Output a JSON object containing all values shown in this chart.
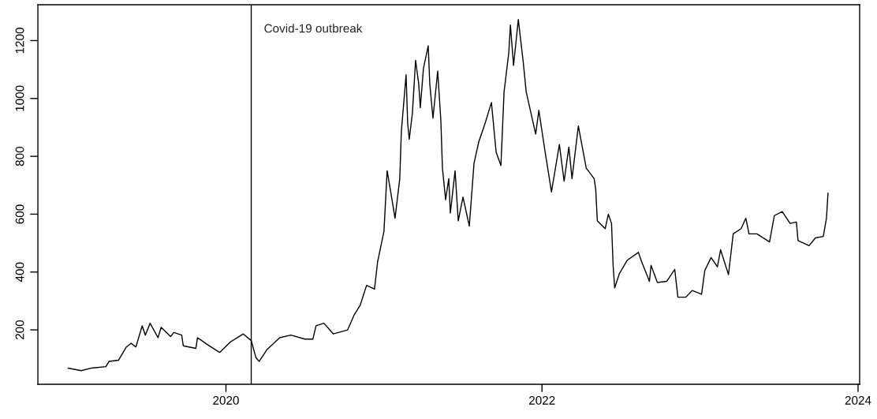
{
  "chart_data": {
    "type": "line",
    "x": [
      2019.001,
      2019.084,
      2019.15,
      2019.24,
      2019.26,
      2019.32,
      2019.37,
      2019.4,
      2019.43,
      2019.47,
      2019.49,
      2019.52,
      2019.57,
      2019.59,
      2019.65,
      2019.67,
      2019.72,
      2019.73,
      2019.81,
      2019.82,
      2019.88,
      2019.96,
      2020.03,
      2020.11,
      2020.16,
      2020.19,
      2020.21,
      2020.26,
      2020.34,
      2020.41,
      2020.5,
      2020.55,
      2020.57,
      2020.62,
      2020.68,
      2020.77,
      2020.81,
      2020.85,
      2020.89,
      2020.94,
      2020.96,
      2021.0,
      2021.02,
      2021.04,
      2021.07,
      2021.1,
      2021.11,
      2021.14,
      2021.15,
      2021.16,
      2021.18,
      2021.2,
      2021.22,
      2021.23,
      2021.25,
      2021.28,
      2021.29,
      2021.31,
      2021.34,
      2021.36,
      2021.37,
      2021.39,
      2021.41,
      2021.42,
      2021.45,
      2021.47,
      2021.5,
      2021.54,
      2021.57,
      2021.6,
      2021.64,
      2021.68,
      2021.71,
      2021.74,
      2021.76,
      2021.79,
      2021.8,
      2021.82,
      2021.85,
      2021.88,
      2021.9,
      2021.93,
      2021.96,
      2021.98,
      2022.02,
      2022.06,
      2022.11,
      2022.14,
      2022.17,
      2022.19,
      2022.23,
      2022.28,
      2022.33,
      2022.34,
      2022.35,
      2022.4,
      2022.42,
      2022.44,
      2022.45,
      2022.46,
      2022.49,
      2022.54,
      2022.61,
      2022.63,
      2022.68,
      2022.69,
      2022.73,
      2022.79,
      2022.84,
      2022.86,
      2022.91,
      2022.95,
      2023.01,
      2023.03,
      2023.07,
      2023.11,
      2023.13,
      2023.18,
      2023.21,
      2023.26,
      2023.29,
      2023.31,
      2023.36,
      2023.44,
      2023.47,
      2023.52,
      2023.57,
      2023.61,
      2023.62,
      2023.69,
      2023.73,
      2023.78,
      2023.8,
      2023.81
    ],
    "series": [
      {
        "color": "#000000",
        "values": [
          68,
          59,
          68,
          73,
          91,
          95,
          141,
          154,
          141,
          214,
          182,
          223,
          173,
          209,
          177,
          191,
          182,
          145,
          136,
          173,
          150,
          122,
          159,
          186,
          163,
          104,
          91,
          132,
          173,
          182,
          168,
          168,
          214,
          223,
          186,
          200,
          250,
          286,
          354,
          341,
          436,
          541,
          750,
          686,
          586,
          723,
          886,
          1082,
          914,
          859,
          950,
          1132,
          1050,
          968,
          1105,
          1182,
          1050,
          932,
          1095,
          923,
          759,
          650,
          723,
          604,
          750,
          577,
          659,
          559,
          777,
          850,
          914,
          986,
          814,
          768,
          1023,
          1159,
          1254,
          1114,
          1273,
          1132,
          1023,
          950,
          877,
          959,
          814,
          677,
          841,
          714,
          832,
          723,
          905,
          759,
          723,
          686,
          577,
          550,
          600,
          568,
          423,
          345,
          395,
          441,
          468,
          436,
          368,
          423,
          364,
          368,
          409,
          313,
          313,
          336,
          323,
          405,
          450,
          418,
          477,
          391,
          532,
          550,
          586,
          532,
          532,
          504,
          595,
          609,
          568,
          573,
          509,
          491,
          518,
          523,
          586,
          673
        ]
      }
    ],
    "xlim": [
      2018.81,
      2024.01
    ],
    "xticks": [
      2020,
      2022,
      2024
    ],
    "ylim": [
      12,
      1324
    ],
    "yticks": [
      200,
      400,
      600,
      800,
      1000,
      1200
    ],
    "grid": false,
    "legend": false,
    "line_style": "solid",
    "marker": "none",
    "ref_lines": [
      {
        "axis": "x",
        "value": 2020.16,
        "label": "Covid-19 outbreak",
        "color": "#000000"
      }
    ]
  }
}
